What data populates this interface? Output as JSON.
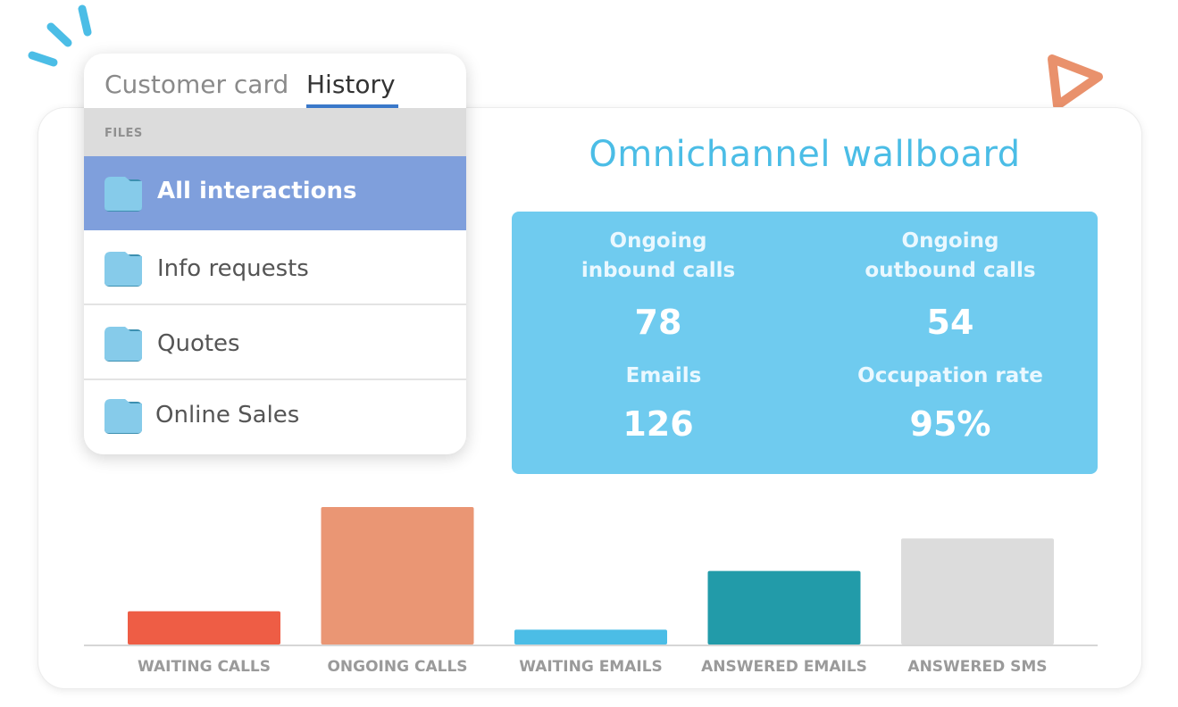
{
  "tabs": [
    {
      "label": "Customer card",
      "active": false
    },
    {
      "label": "History",
      "active": true
    }
  ],
  "files": {
    "header": "FILES",
    "items": [
      {
        "label": "All interactions",
        "selected": true
      },
      {
        "label": "Info requests",
        "selected": false
      },
      {
        "label": "Quotes",
        "selected": false
      },
      {
        "label": "Online Sales",
        "selected": false
      }
    ]
  },
  "wallboard": {
    "title": "Omnichannel wallboard",
    "stats": [
      {
        "label_line1": "Ongoing",
        "label_line2": "inbound calls",
        "value": "78"
      },
      {
        "label_line1": "Ongoing",
        "label_line2": "outbound calls",
        "value": "54"
      },
      {
        "label_line1": "Emails",
        "label_line2": "",
        "value": "126"
      },
      {
        "label_line1": "Occupation rate",
        "label_line2": "",
        "value": "95%"
      }
    ]
  },
  "chart_data": {
    "type": "bar",
    "categories": [
      "WAITING CALLS",
      "ONGOING CALLS",
      "WAITING EMAILS",
      "ANSWERED EMAILS",
      "ANSWERED SMS"
    ],
    "values": [
      38,
      157,
      17,
      84,
      121
    ],
    "colors": [
      "#ee5d45",
      "#ea9674",
      "#4bbde6",
      "#229ba9",
      "#dcdcdc"
    ],
    "ylim": [
      0,
      160
    ],
    "grid": false,
    "legend": "none"
  },
  "colors": {
    "accent_blue": "#4bbde6",
    "panel_selected": "#7f9fdc",
    "tab_underline": "#3a78c9",
    "deco_orange": "#e9916c"
  },
  "icons": {
    "folder": "folder-icon",
    "burst": "burst-decoration-icon",
    "play": "play-triangle-icon"
  }
}
